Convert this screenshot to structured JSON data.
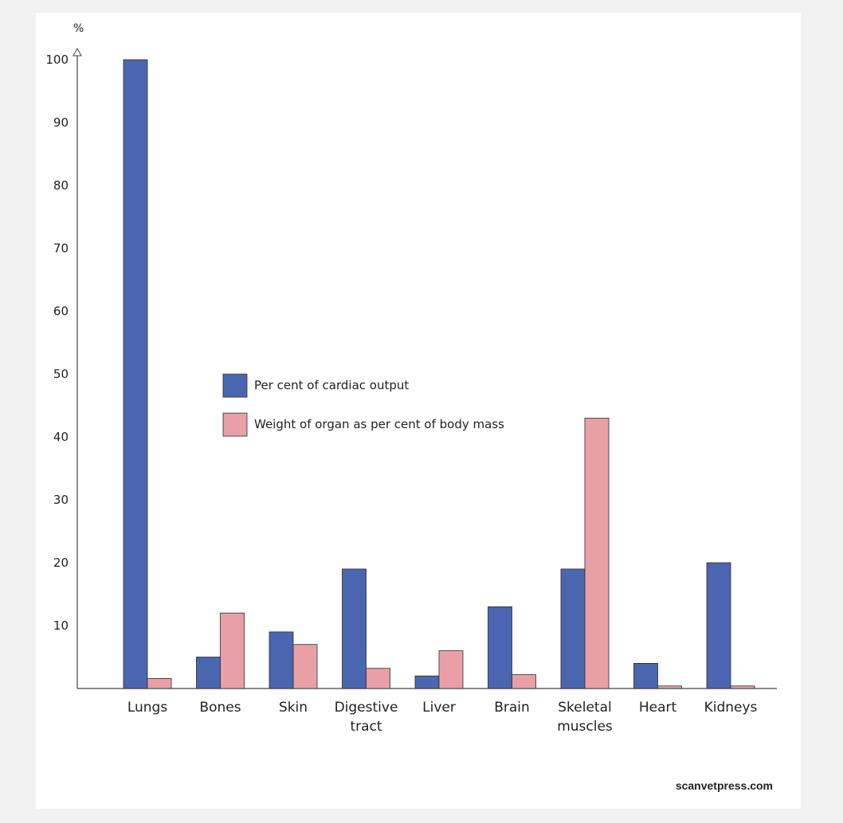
{
  "chart_data": {
    "type": "bar",
    "ylabel": "%",
    "ylim": [
      0,
      100
    ],
    "yticks": [
      10,
      20,
      30,
      40,
      50,
      60,
      70,
      80,
      90,
      100
    ],
    "categories": [
      [
        "Lungs"
      ],
      [
        "Bones"
      ],
      [
        "Skin"
      ],
      [
        "Digestive",
        "tract"
      ],
      [
        "Liver"
      ],
      [
        "Brain"
      ],
      [
        "Skeletal",
        "muscles"
      ],
      [
        "Heart"
      ],
      [
        "Kidneys"
      ]
    ],
    "series": [
      {
        "name": "Per cent of cardiac output",
        "color": "#4a66b0",
        "values": [
          100,
          5,
          9,
          19,
          2,
          13,
          19,
          4,
          20
        ]
      },
      {
        "name": "Weight of organ as per cent of body mass",
        "color": "#e8a0a6",
        "values": [
          1.6,
          12,
          7,
          3.2,
          6,
          2.2,
          43,
          0.4,
          0.4
        ]
      }
    ],
    "legend_position": "center",
    "grid": false
  },
  "credit": "scanvetpress.com"
}
